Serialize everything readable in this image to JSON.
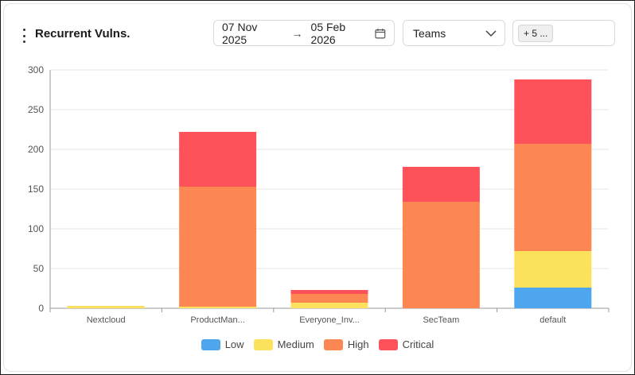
{
  "header": {
    "title": "Recurrent Vulns.",
    "date_from": "07 Nov 2025",
    "date_arrow": "→",
    "date_to": "05 Feb 2026",
    "teams_label": "Teams",
    "multi_tag": "+ 5 ..."
  },
  "icons": {
    "menu": "kebab-menu-icon",
    "calendar": "calendar-icon",
    "chevron": "chevron-down-icon"
  },
  "colors": {
    "Low": "#4ea6ef",
    "Medium": "#fce15c",
    "High": "#fd8752",
    "Critical": "#fe525b"
  },
  "chart_data": {
    "type": "bar",
    "stacked": true,
    "categories": [
      "Nextcloud",
      "ProductMan...",
      "Everyone_Inv...",
      "SecTeam",
      "default"
    ],
    "series": [
      {
        "name": "Low",
        "values": [
          0,
          0,
          0,
          0,
          26
        ]
      },
      {
        "name": "Medium",
        "values": [
          3,
          2,
          7,
          0,
          46
        ]
      },
      {
        "name": "High",
        "values": [
          0,
          151,
          11,
          134,
          135
        ]
      },
      {
        "name": "Critical",
        "values": [
          0,
          69,
          5,
          44,
          81
        ]
      }
    ],
    "ylim": [
      0,
      300
    ],
    "yticks": [
      0,
      50,
      100,
      150,
      200,
      250,
      300
    ],
    "grid": true,
    "legend": "bottom-center"
  }
}
